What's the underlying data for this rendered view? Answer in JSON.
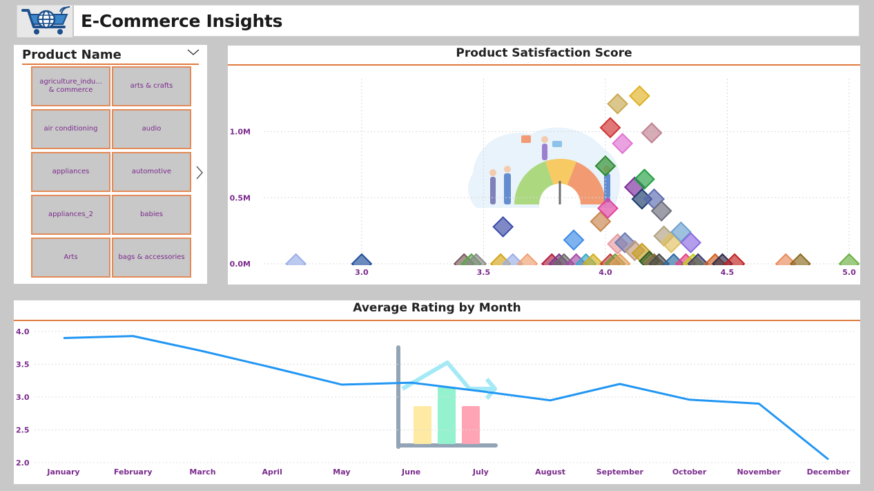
{
  "header": {
    "title": "E-Commerce Insights",
    "logo_icon": "shopping-cart-globe-icon"
  },
  "slicer": {
    "title": "Product Name",
    "expand_icon": "chevron-down-icon",
    "next_icon": "chevron-right-icon",
    "items": [
      "agriculture_indu... & commerce",
      "arts & crafts",
      "air conditioning",
      "audio",
      "appliances",
      "automotive",
      "appliances_2",
      "babies",
      "Arts",
      "bags & accessories"
    ]
  },
  "scatter_chart": {
    "title": "Product Satisfaction Score",
    "illustration_icon": "customer-satisfaction-gauge-illustration"
  },
  "line_chart": {
    "title": "Average Rating by Month",
    "illustration_icon": "bar-chart-growth-illustration"
  },
  "colors": {
    "accent_rule": "#e07a3e",
    "tick_label": "#7a2a8c",
    "line": "#2196f3",
    "tile_border": "#e38a57"
  },
  "chart_data": [
    {
      "type": "scatter",
      "title": "Product Satisfaction Score",
      "xlim": [
        2.7,
        5.0
      ],
      "ylim": [
        0,
        1400000
      ],
      "x_ticks": [
        "3.0",
        "3.5",
        "4.0",
        "4.5",
        "5.0"
      ],
      "y_ticks": [
        "0.0M",
        "0.5M",
        "1.0M"
      ],
      "x_tick_values": [
        3.0,
        3.5,
        4.0,
        4.5,
        5.0
      ],
      "y_tick_values": [
        0,
        500000,
        1000000
      ],
      "grid": true,
      "points": [
        {
          "x": 2.73,
          "y": 0,
          "color": "#9aaee8"
        },
        {
          "x": 3.0,
          "y": 0,
          "color": "#1f4e9a"
        },
        {
          "x": 3.42,
          "y": 0,
          "color": "#7a5a5a"
        },
        {
          "x": 3.45,
          "y": 0,
          "color": "#5aa64a"
        },
        {
          "x": 3.47,
          "y": 0,
          "color": "#8a8a8a"
        },
        {
          "x": 3.57,
          "y": 0,
          "color": "#d4a418"
        },
        {
          "x": 3.62,
          "y": 0,
          "color": "#9aaee8"
        },
        {
          "x": 3.68,
          "y": 0,
          "color": "#f0a070"
        },
        {
          "x": 3.58,
          "y": 280000,
          "color": "#3a4aa8"
        },
        {
          "x": 3.78,
          "y": 0,
          "color": "#b02040"
        },
        {
          "x": 3.81,
          "y": 0,
          "color": "#7a3a8a"
        },
        {
          "x": 3.83,
          "y": 0,
          "color": "#6a6a6a"
        },
        {
          "x": 3.87,
          "y": 180000,
          "color": "#3a8ae8"
        },
        {
          "x": 3.88,
          "y": 0,
          "color": "#a84aa8"
        },
        {
          "x": 3.92,
          "y": 0,
          "color": "#3aa8c8"
        },
        {
          "x": 3.95,
          "y": 0,
          "color": "#d4b020"
        },
        {
          "x": 3.98,
          "y": 320000,
          "color": "#c8844a"
        },
        {
          "x": 4.02,
          "y": 0,
          "color": "#c04040"
        },
        {
          "x": 4.04,
          "y": 0,
          "color": "#7a9a3a"
        },
        {
          "x": 4.06,
          "y": 0,
          "color": "#e8a060"
        },
        {
          "x": 4.01,
          "y": 420000,
          "color": "#e040a0"
        },
        {
          "x": 4.0,
          "y": 740000,
          "color": "#2a8a2a"
        },
        {
          "x": 4.02,
          "y": 1030000,
          "color": "#d03030"
        },
        {
          "x": 4.05,
          "y": 1210000,
          "color": "#c8a850"
        },
        {
          "x": 4.07,
          "y": 910000,
          "color": "#e070d0"
        },
        {
          "x": 4.14,
          "y": 1270000,
          "color": "#e0b020"
        },
        {
          "x": 4.19,
          "y": 990000,
          "color": "#c08090"
        },
        {
          "x": 4.12,
          "y": 580000,
          "color": "#7a2a9a"
        },
        {
          "x": 4.16,
          "y": 640000,
          "color": "#20a040"
        },
        {
          "x": 4.15,
          "y": 490000,
          "color": "#1a3a6a"
        },
        {
          "x": 4.2,
          "y": 490000,
          "color": "#5a6ab0"
        },
        {
          "x": 4.23,
          "y": 400000,
          "color": "#6a6a7a"
        },
        {
          "x": 4.05,
          "y": 150000,
          "color": "#e89aa0"
        },
        {
          "x": 4.08,
          "y": 160000,
          "color": "#6a7ab0"
        },
        {
          "x": 4.12,
          "y": 100000,
          "color": "#c09a80"
        },
        {
          "x": 4.15,
          "y": 80000,
          "color": "#c8a020"
        },
        {
          "x": 4.18,
          "y": 20000,
          "color": "#2a5a2a"
        },
        {
          "x": 4.2,
          "y": 0,
          "color": "#8a6a3a"
        },
        {
          "x": 4.22,
          "y": 0,
          "color": "#4a4a4a"
        },
        {
          "x": 4.24,
          "y": 210000,
          "color": "#b0a080"
        },
        {
          "x": 4.27,
          "y": 160000,
          "color": "#e0c060"
        },
        {
          "x": 4.31,
          "y": 240000,
          "color": "#6aa0d0"
        },
        {
          "x": 4.35,
          "y": 160000,
          "color": "#8a6ae0"
        },
        {
          "x": 4.28,
          "y": 0,
          "color": "#2a6aa0"
        },
        {
          "x": 4.33,
          "y": 0,
          "color": "#e84080"
        },
        {
          "x": 4.36,
          "y": 0,
          "color": "#c0d020"
        },
        {
          "x": 4.38,
          "y": 0,
          "color": "#3a3a6a"
        },
        {
          "x": 4.45,
          "y": 0,
          "color": "#d06020"
        },
        {
          "x": 4.48,
          "y": 0,
          "color": "#2a2a4a"
        },
        {
          "x": 4.53,
          "y": 0,
          "color": "#c02020"
        },
        {
          "x": 4.74,
          "y": 0,
          "color": "#e88a5a"
        },
        {
          "x": 4.8,
          "y": 0,
          "color": "#8a6a20"
        },
        {
          "x": 5.0,
          "y": 0,
          "color": "#6ab040"
        }
      ]
    },
    {
      "type": "line",
      "title": "Average Rating by Month",
      "categories": [
        "January",
        "February",
        "March",
        "April",
        "May",
        "June",
        "July",
        "August",
        "September",
        "October",
        "November",
        "December"
      ],
      "values": [
        3.9,
        3.93,
        3.7,
        3.45,
        3.19,
        3.22,
        3.09,
        2.95,
        3.2,
        2.96,
        2.9,
        2.05
      ],
      "ylim": [
        2.0,
        4.0
      ],
      "y_ticks": [
        "2.0",
        "2.5",
        "3.0",
        "3.5",
        "4.0"
      ],
      "y_tick_values": [
        2.0,
        2.5,
        3.0,
        3.5,
        4.0
      ],
      "grid": true
    }
  ]
}
